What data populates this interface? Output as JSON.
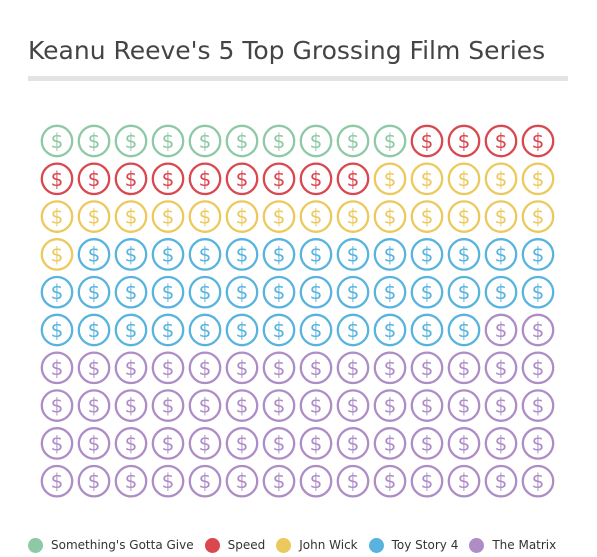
{
  "chart_data": {
    "type": "waffle",
    "title": "Keanu Reeve's 5 Top Grossing Film Series",
    "unit_icon": "dollar-coin-icon",
    "unit_symbol": "$",
    "grid": {
      "rows": 10,
      "cols": 14
    },
    "total_units": 140,
    "legend_position": "bottom-left",
    "series": [
      {
        "name": "Something's Gotta Give",
        "units": 10,
        "color": "#8ec9a5"
      },
      {
        "name": "Speed",
        "units": 13,
        "color": "#d9474f"
      },
      {
        "name": "John Wick",
        "units": 20,
        "color": "#ecc95c"
      },
      {
        "name": "Toy Story 4",
        "units": 39,
        "color": "#58b4de"
      },
      {
        "name": "The Matrix",
        "units": 58,
        "color": "#ae8dc7"
      }
    ]
  }
}
